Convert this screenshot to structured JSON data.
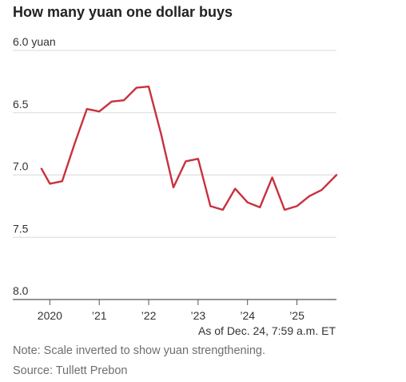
{
  "chart_data": {
    "type": "line",
    "title": "How many yuan one dollar buys",
    "y_unit": "yuan",
    "y_inverted": true,
    "ylim": [
      6.0,
      8.0
    ],
    "y_ticks": [
      {
        "value": 6.0,
        "label": "6.0 yuan"
      },
      {
        "value": 6.5,
        "label": "6.5"
      },
      {
        "value": 7.0,
        "label": "7.0"
      },
      {
        "value": 7.5,
        "label": "7.5"
      },
      {
        "value": 8.0,
        "label": "8.0"
      }
    ],
    "xlim": [
      2019.8,
      2025.8
    ],
    "x_ticks": [
      {
        "value": 2020,
        "label": "2020"
      },
      {
        "value": 2021,
        "label": "’21"
      },
      {
        "value": 2022,
        "label": "’22"
      },
      {
        "value": 2023,
        "label": "’23"
      },
      {
        "value": 2024,
        "label": "’24"
      },
      {
        "value": 2025,
        "label": "’25"
      }
    ],
    "grid": true,
    "line_color": "#c8313e",
    "series": [
      {
        "x": [
          2019.83,
          2020.0,
          2020.25,
          2020.5,
          2020.75,
          2021.0,
          2021.25,
          2021.5,
          2021.75,
          2022.0,
          2022.25,
          2022.5,
          2022.75,
          2023.0,
          2023.25,
          2023.5,
          2023.75,
          2024.0,
          2024.25,
          2024.5,
          2024.75,
          2025.0,
          2025.25,
          2025.5,
          2025.8
        ],
        "values": [
          6.95,
          7.07,
          7.05,
          6.75,
          6.47,
          6.49,
          6.41,
          6.4,
          6.3,
          6.29,
          6.67,
          7.1,
          6.89,
          6.87,
          7.25,
          7.28,
          7.11,
          7.22,
          7.26,
          7.02,
          7.28,
          7.25,
          7.17,
          7.12,
          7.0
        ]
      }
    ],
    "annotations": [
      "As of Dec. 24, 7:59 a.m. ET"
    ]
  },
  "footnotes": {
    "note": "Note: Scale inverted to show yuan strengthening.",
    "source": "Source: Tullett Prebon"
  }
}
